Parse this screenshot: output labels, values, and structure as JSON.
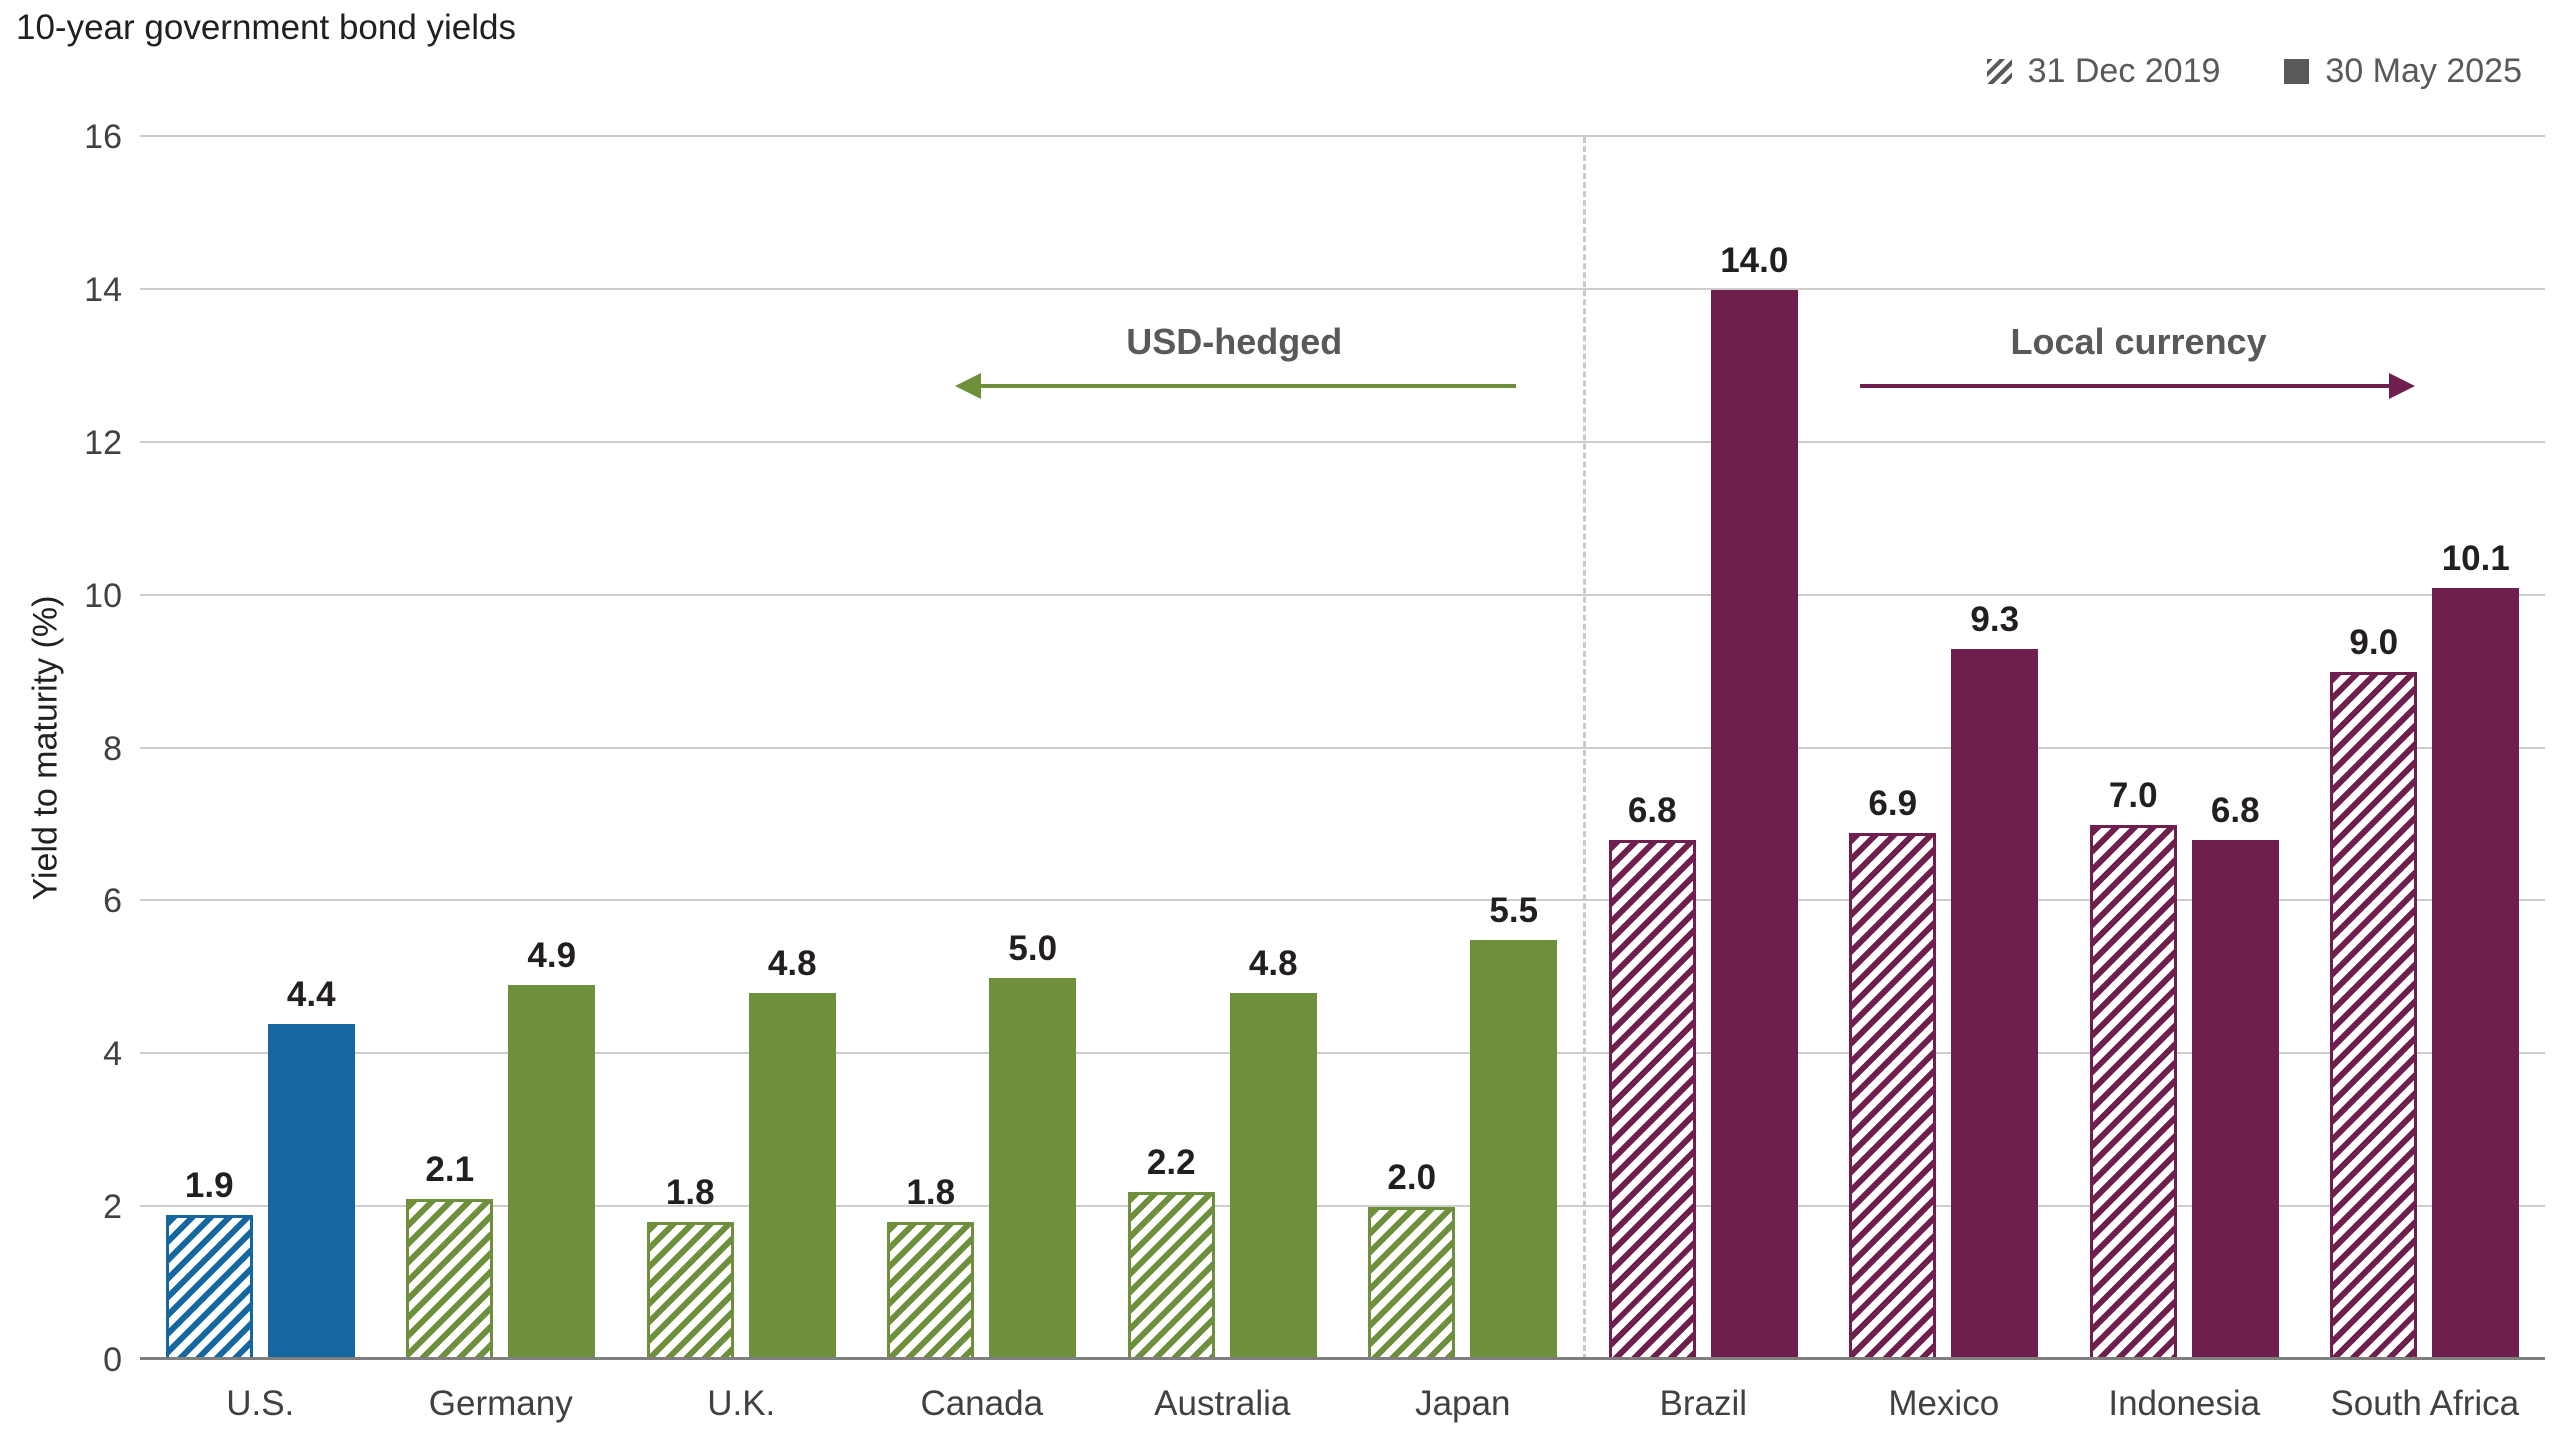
{
  "chart_data": {
    "type": "bar",
    "title": "10-year government bond yields",
    "ylabel": "Yield to maturity (%)",
    "ylim": [
      0,
      16
    ],
    "ytick_step": 2,
    "grid": true,
    "legend_position": "top-right",
    "series": [
      "31 Dec 2019",
      "30 May 2025"
    ],
    "series_styles": [
      "hatched",
      "solid"
    ],
    "annotations": {
      "usd_hedged": {
        "label": "USD-hedged",
        "color": "#6e8f3c",
        "arrow_direction": "left"
      },
      "local_currency": {
        "label": "Local currency",
        "color": "#6f1f4e",
        "arrow_direction": "right"
      }
    },
    "colors": {
      "us": "#15689f",
      "developed": "#6e8f3c",
      "emerging": "#6f1f4e",
      "legend_swatch": "#58595b"
    },
    "groups": [
      {
        "label": "U.S.",
        "section": "usd",
        "color": "#15689f",
        "values": [
          1.9,
          4.4
        ]
      },
      {
        "label": "Germany",
        "section": "usd",
        "color": "#6e8f3c",
        "values": [
          2.1,
          4.9
        ]
      },
      {
        "label": "U.K.",
        "section": "usd",
        "color": "#6e8f3c",
        "values": [
          1.8,
          4.8
        ]
      },
      {
        "label": "Canada",
        "section": "usd",
        "color": "#6e8f3c",
        "values": [
          1.8,
          5.0
        ]
      },
      {
        "label": "Australia",
        "section": "usd",
        "color": "#6e8f3c",
        "values": [
          2.2,
          4.8
        ]
      },
      {
        "label": "Japan",
        "section": "usd",
        "color": "#6e8f3c",
        "values": [
          2.0,
          5.5
        ]
      },
      {
        "label": "Brazil",
        "section": "local",
        "color": "#6f1f4e",
        "values": [
          6.8,
          14.0
        ]
      },
      {
        "label": "Mexico",
        "section": "local",
        "color": "#6f1f4e",
        "values": [
          6.9,
          9.3
        ]
      },
      {
        "label": "Indonesia",
        "section": "local",
        "color": "#6f1f4e",
        "values": [
          7.0,
          6.8
        ]
      },
      {
        "label": "South Africa",
        "section": "local",
        "color": "#6f1f4e",
        "values": [
          9.0,
          10.1
        ]
      }
    ]
  }
}
